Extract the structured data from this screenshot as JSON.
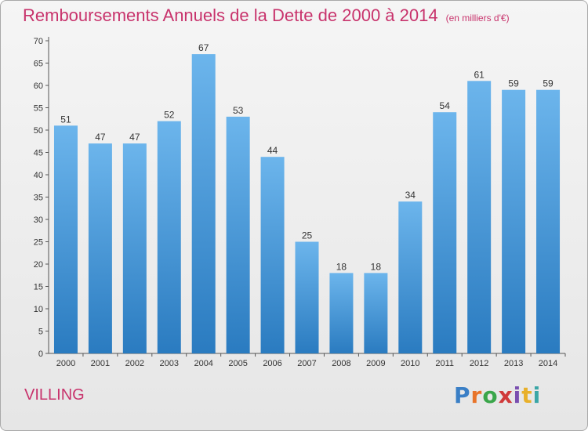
{
  "title": "Remboursements Annuels de la Dette de 2000 à 2014",
  "unit": "(en milliers d'€)",
  "commune": "VILLING",
  "logo": {
    "letters": [
      "P",
      "r",
      "o",
      "x",
      "i",
      "t",
      "i"
    ],
    "colors": [
      "#3a7fc6",
      "#e8742a",
      "#3aa64a",
      "#d03a3a",
      "#7a4fb0",
      "#e8b02a",
      "#3aa6a6"
    ]
  },
  "colors": {
    "bar_light": "#6cb5ec",
    "bar_dark": "#2a7bc0",
    "title": "#c8336c"
  },
  "chart_data": {
    "type": "bar",
    "categories": [
      "2000",
      "2001",
      "2002",
      "2003",
      "2004",
      "2005",
      "2006",
      "2007",
      "2008",
      "2009",
      "2010",
      "2011",
      "2012",
      "2013",
      "2014"
    ],
    "values": [
      51,
      47,
      47,
      52,
      67,
      53,
      44,
      25,
      18,
      18,
      34,
      54,
      61,
      59,
      59
    ],
    "title": "Remboursements Annuels de la Dette de 2000 à 2014",
    "ylim": [
      0,
      70
    ],
    "yticks": [
      0,
      5,
      10,
      15,
      20,
      25,
      30,
      35,
      40,
      45,
      50,
      55,
      60,
      65,
      70
    ],
    "grid": false,
    "legend": "none"
  }
}
